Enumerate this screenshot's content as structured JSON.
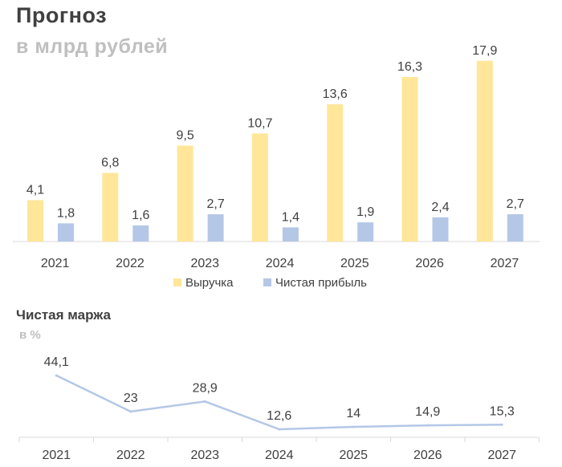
{
  "header": {
    "title": "Прогноз",
    "subtitle": "в млрд рублей"
  },
  "margin_header": {
    "title": "Чистая маржа",
    "subtitle": "в %"
  },
  "chart_data": [
    {
      "type": "bar",
      "title": "Прогноз",
      "subtitle": "в млрд рублей",
      "categories": [
        "2021",
        "2022",
        "2023",
        "2024",
        "2025",
        "2026",
        "2027"
      ],
      "value_labels": {
        "revenue": [
          "4,1",
          "6,8",
          "9,5",
          "10,7",
          "13,6",
          "16,3",
          "17,9"
        ],
        "profit": [
          "1,8",
          "1,6",
          "2,7",
          "1,4",
          "1,9",
          "2,4",
          "2,7"
        ]
      },
      "series": [
        {
          "name": "Выручка",
          "values": [
            4.1,
            6.8,
            9.5,
            10.7,
            13.6,
            16.3,
            17.9
          ],
          "color": "#ffe699"
        },
        {
          "name": "Чистая прибыль",
          "values": [
            1.8,
            1.6,
            2.7,
            1.4,
            1.9,
            2.4,
            2.7
          ],
          "color": "#b4c7e7"
        }
      ],
      "ylim": [
        0,
        18.6
      ],
      "grid": false,
      "legend": "bottom"
    },
    {
      "type": "line",
      "title": "Чистая маржа",
      "subtitle": "в %",
      "categories": [
        "2021",
        "2022",
        "2023",
        "2024",
        "2025",
        "2026",
        "2027"
      ],
      "value_labels": [
        "44,1",
        "23",
        "28,9",
        "12,6",
        "14",
        "14,9",
        "15,3"
      ],
      "series": [
        {
          "values": [
            44.1,
            23,
            28.9,
            12.6,
            14,
            14.9,
            15.3
          ],
          "color": "#b4c7e7"
        }
      ],
      "ylim": [
        12.6,
        44.1
      ],
      "grid": false,
      "legend": "none"
    }
  ]
}
